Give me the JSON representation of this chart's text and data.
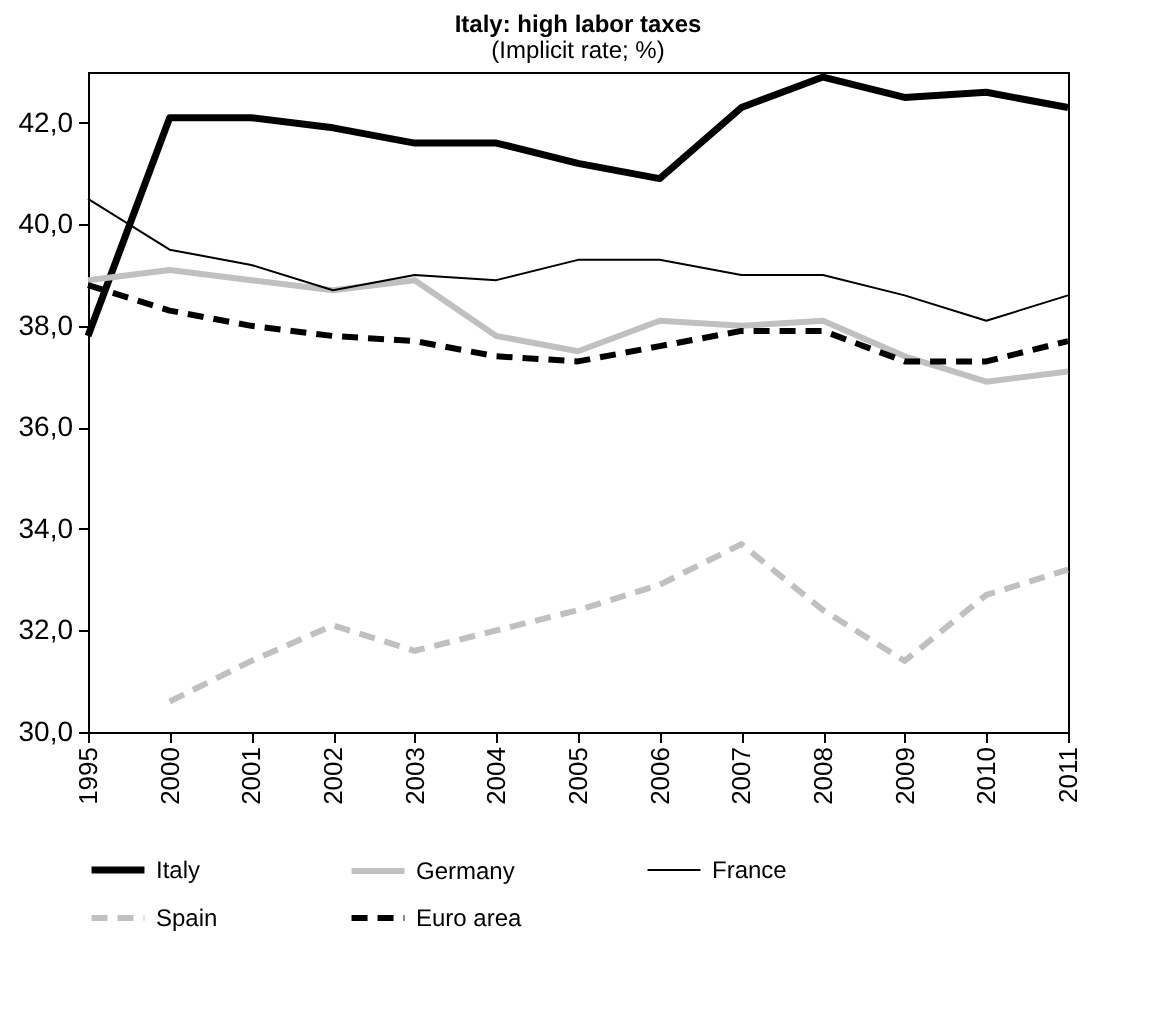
{
  "chart_data": {
    "type": "line",
    "title": "Italy: high labor taxes",
    "subtitle": "(Implicit rate; %)",
    "categories": [
      "1995",
      "2000",
      "2001",
      "2002",
      "2003",
      "2004",
      "2005",
      "2006",
      "2007",
      "2008",
      "2009",
      "2010",
      "2011"
    ],
    "series": [
      {
        "name": "Italy",
        "color": "#000000",
        "line_style": "solid",
        "values": [
          37.8,
          42.1,
          42.1,
          41.9,
          41.6,
          41.6,
          41.2,
          40.9,
          42.3,
          42.9,
          42.5,
          42.6,
          42.3
        ]
      },
      {
        "name": "Germany",
        "color": "#c0c0c0",
        "line_style": "solid",
        "values": [
          38.9,
          39.1,
          38.9,
          38.7,
          38.9,
          37.8,
          37.5,
          38.1,
          38.0,
          38.1,
          37.4,
          36.9,
          37.1
        ]
      },
      {
        "name": "France",
        "color": "#000000",
        "line_style": "solid",
        "values": [
          40.5,
          39.5,
          39.2,
          38.7,
          39.0,
          38.9,
          39.3,
          39.3,
          39.0,
          39.0,
          38.6,
          38.1,
          38.6
        ]
      },
      {
        "name": "Spain",
        "color": "#c0c0c0",
        "line_style": "dashed",
        "values": [
          null,
          30.6,
          31.4,
          32.1,
          31.6,
          32.0,
          32.4,
          32.9,
          33.7,
          32.4,
          31.4,
          32.7,
          33.2
        ]
      },
      {
        "name": "Euro area",
        "color": "#000000",
        "line_style": "dashed",
        "values": [
          38.8,
          38.3,
          38.0,
          37.8,
          37.7,
          37.4,
          37.3,
          37.6,
          37.9,
          37.9,
          37.3,
          37.3,
          37.7
        ]
      }
    ],
    "ylim": [
      30,
      43
    ],
    "yticks": [
      {
        "value": 30,
        "label": "30,0"
      },
      {
        "value": 32,
        "label": "32,0"
      },
      {
        "value": 34,
        "label": "34,0"
      },
      {
        "value": 36,
        "label": "36,0"
      },
      {
        "value": 38,
        "label": "38,0"
      },
      {
        "value": 40,
        "label": "40,0"
      },
      {
        "value": 42,
        "label": "42,0"
      }
    ],
    "grid": false,
    "legend": "bottom",
    "marker": "none"
  }
}
